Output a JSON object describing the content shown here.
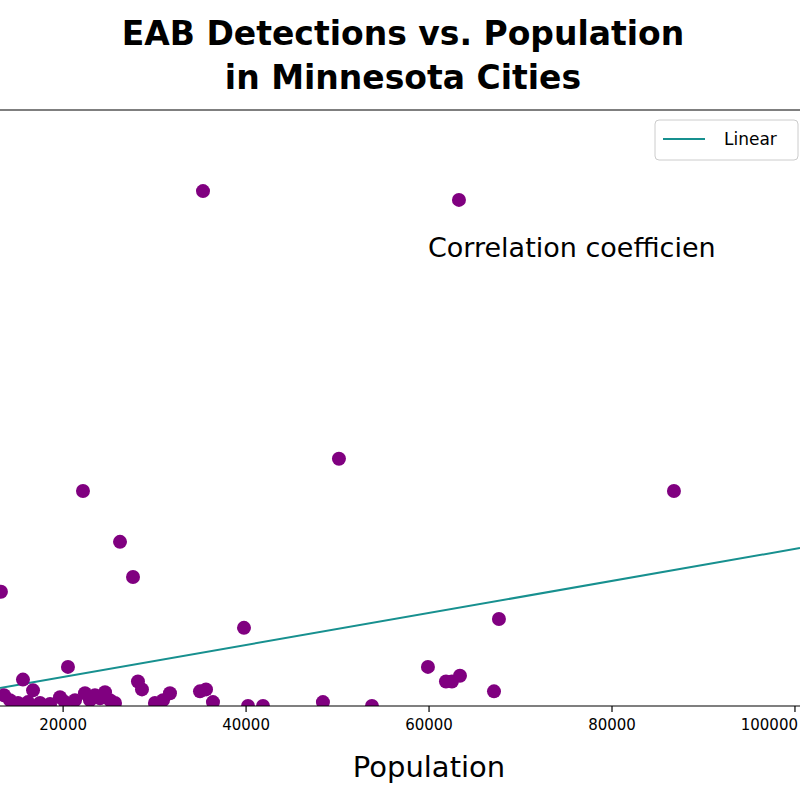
{
  "chart_data": {
    "type": "scatter",
    "title": [
      "EAB Detections vs. Population",
      "in Minnesota Cities"
    ],
    "x_label": "Population",
    "annotation": "Correlation coefficien",
    "xlim": [
      13100,
      100550
    ],
    "xticks": [
      20000,
      40000,
      60000,
      80000,
      100000
    ],
    "ylim": [
      -1,
      60
    ],
    "tick_labels": "x",
    "grid": false,
    "legend": "upper right",
    "series": [
      {
        "type": "scatter",
        "color": "#800080",
        "marker": "circle",
        "x": [
          35290,
          63270,
          50150,
          22170,
          86770,
          26220,
          27640,
          13200,
          39770,
          67640,
          20530,
          59880,
          61850,
          62500,
          63380,
          67100,
          28180,
          28620,
          15610,
          13540,
          16710,
          31680,
          34960,
          35620,
          36380,
          30040,
          30920,
          40210,
          41850,
          48400,
          53760,
          14190,
          15070,
          16160,
          17470,
          18570,
          19660,
          20200,
          21300,
          22390,
          22940,
          23480,
          24030,
          24580,
          25120,
          25670
        ],
        "values": [
          51.7,
          50.8,
          24.3,
          21.0,
          21.0,
          15.8,
          12.2,
          10.7,
          7.0,
          7.9,
          3.0,
          3.0,
          1.5,
          1.5,
          2.1,
          0.5,
          1.5,
          0.7,
          1.7,
          0.1,
          0.6,
          0.3,
          0.5,
          0.7,
          -0.6,
          -0.7,
          -0.4,
          -1.0,
          -1.0,
          -0.6,
          -1.0,
          -0.4,
          -0.7,
          -0.6,
          -0.7,
          -0.8,
          -0.1,
          -0.6,
          -0.4,
          0.3,
          -0.4,
          0.1,
          -0.2,
          0.4,
          -0.4,
          -0.7
        ]
      },
      {
        "type": "line",
        "name": "Linear",
        "color": "#17908f",
        "line_style": "solid",
        "x": [
          13100,
          100550
        ],
        "values": [
          0.84,
          15.17
        ]
      }
    ]
  }
}
